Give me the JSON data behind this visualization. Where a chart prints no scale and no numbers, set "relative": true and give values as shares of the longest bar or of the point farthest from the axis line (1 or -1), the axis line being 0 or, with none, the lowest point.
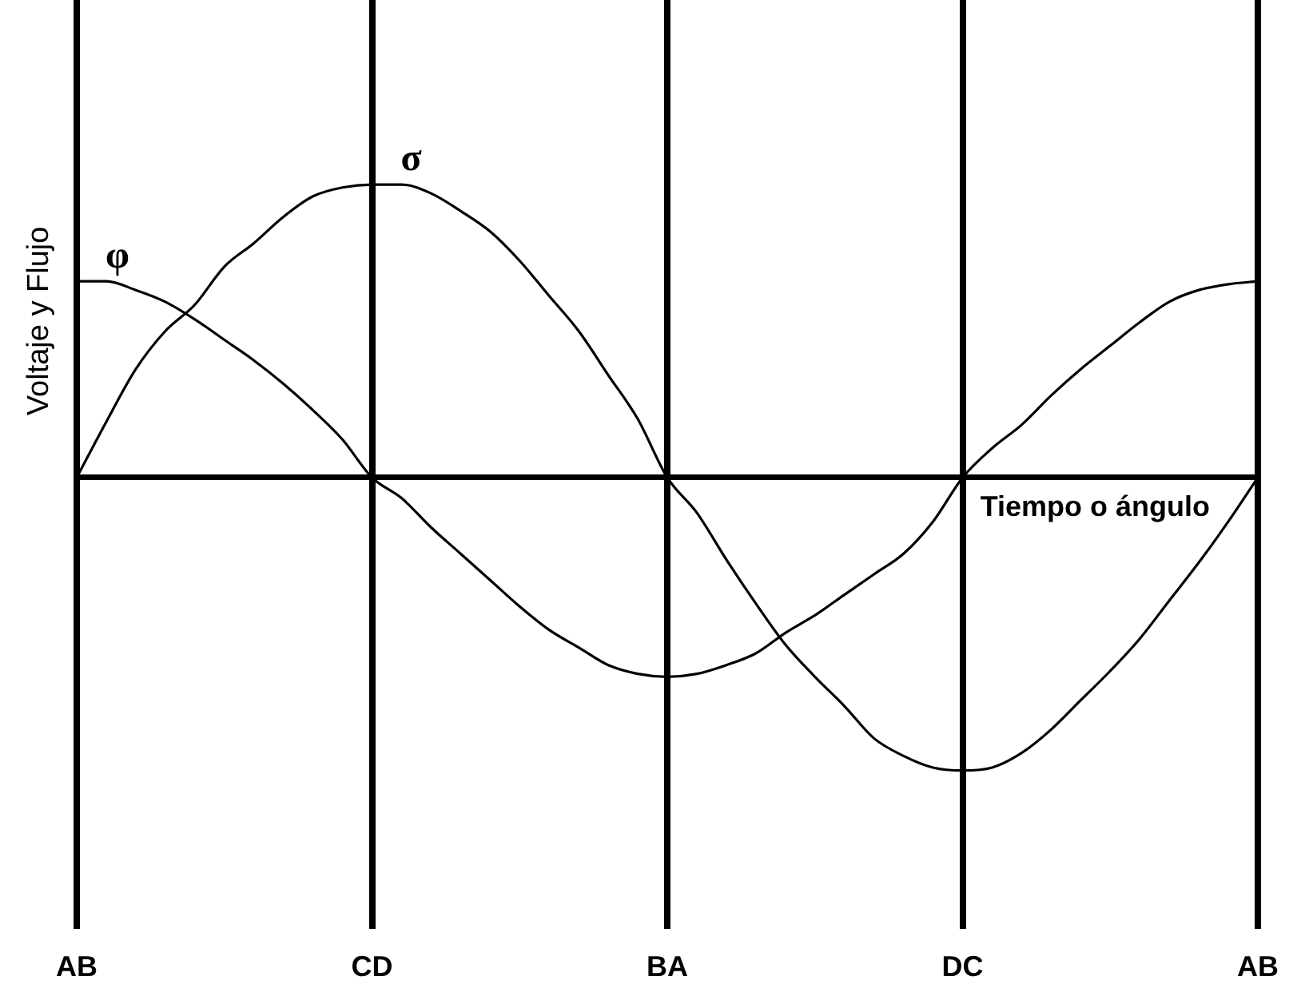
{
  "chart_data": {
    "type": "line",
    "relative": true,
    "grid": "x",
    "xlabel": "Tiempo o ángulo",
    "ylabel": "Voltaje y Flujo",
    "categories": [
      "AB",
      null,
      null,
      null,
      null,
      null,
      null,
      null,
      null,
      null,
      "CD",
      null,
      null,
      null,
      null,
      null,
      null,
      null,
      null,
      null,
      "BA",
      null,
      null,
      null,
      null,
      null,
      null,
      null,
      null,
      null,
      "DC",
      null,
      null,
      null,
      null,
      null,
      null,
      null,
      null,
      null,
      "AB"
    ],
    "series": [
      {
        "name": "φ",
        "color": "#000000",
        "values": [
          0.67,
          0.67,
          0.64,
          0.6,
          0.54,
          0.47,
          0.4,
          0.32,
          0.23,
          0.13,
          0,
          -0.07,
          -0.17,
          -0.26,
          -0.35,
          -0.44,
          -0.52,
          -0.58,
          -0.64,
          -0.67,
          -0.68,
          -0.67,
          -0.64,
          -0.6,
          -0.53,
          -0.47,
          -0.4,
          -0.33,
          -0.26,
          -0.15,
          0,
          0.1,
          0.18,
          0.28,
          0.37,
          0.45,
          0.53,
          0.6,
          0.64,
          0.66,
          0.67
        ]
      },
      {
        "name": "σ",
        "color": "#000000",
        "values": [
          0,
          0.19,
          0.37,
          0.5,
          0.59,
          0.72,
          0.8,
          0.89,
          0.96,
          0.99,
          1,
          1,
          0.97,
          0.91,
          0.84,
          0.74,
          0.62,
          0.5,
          0.35,
          0.2,
          0,
          -0.12,
          -0.28,
          -0.43,
          -0.57,
          -0.68,
          -0.78,
          -0.89,
          -0.95,
          -0.99,
          -1,
          -0.99,
          -0.94,
          -0.86,
          -0.76,
          -0.66,
          -0.55,
          -0.42,
          -0.29,
          -0.15,
          0
        ]
      }
    ]
  }
}
